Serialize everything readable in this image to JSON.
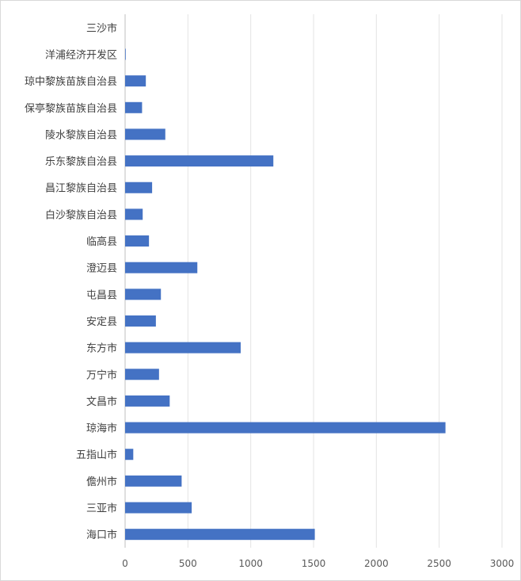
{
  "chart_data": {
    "type": "bar",
    "orientation": "horizontal",
    "title": "",
    "xlabel": "",
    "ylabel": "",
    "xlim": [
      0,
      3000
    ],
    "x_ticks": [
      "0",
      "500",
      "1000",
      "1500",
      "2000",
      "2500",
      "3000"
    ],
    "grid": true,
    "legend": "none",
    "bar_color": "#4472c4",
    "categories": [
      "三沙市",
      "洋浦经济开发区",
      "琼中黎族苗族自治县",
      "保亭黎族苗族自治县",
      "陵水黎族自治县",
      "乐东黎族自治县",
      "昌江黎族自治县",
      "白沙黎族自治县",
      "临高县",
      "澄迈县",
      "屯昌县",
      "安定县",
      "东方市",
      "万宁市",
      "文昌市",
      "琼海市",
      "五指山市",
      "儋州市",
      "三亚市",
      "海口市"
    ],
    "values": [
      0,
      5,
      165,
      135,
      320,
      1180,
      215,
      140,
      190,
      575,
      285,
      245,
      920,
      270,
      355,
      2550,
      65,
      450,
      530,
      1510
    ]
  }
}
